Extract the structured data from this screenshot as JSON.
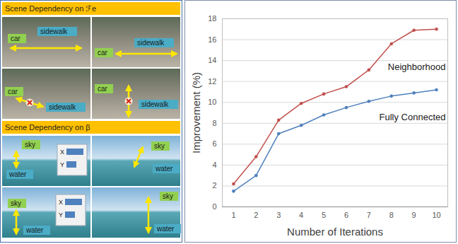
{
  "left_panel": {
    "sections": [
      {
        "title": "Scene Dependency on ℱe",
        "images": [
          {
            "labels": [
              "car",
              "sidewalk"
            ]
          },
          {
            "labels": [
              "car",
              "sidewalk"
            ]
          },
          {
            "labels": [
              "car",
              "sidewalk"
            ]
          },
          {
            "labels": [
              "car",
              "sidewalk"
            ]
          }
        ]
      },
      {
        "title": "Scene Dependency on β",
        "images": [
          {
            "labels": [
              "sky",
              "water"
            ],
            "inset_labels": [
              "X",
              "Y"
            ]
          },
          {
            "labels": [
              "sky",
              "water"
            ]
          },
          {
            "labels": [
              "sky",
              "water"
            ],
            "inset_labels": [
              "X",
              "Y"
            ]
          },
          {
            "labels": [
              "sky",
              "water"
            ]
          }
        ]
      }
    ]
  },
  "chart_data": {
    "type": "line",
    "x_label": "Number of Iterations",
    "y_label": "Improvement (%)",
    "x": [
      1,
      2,
      3,
      4,
      5,
      6,
      7,
      8,
      9,
      10
    ],
    "series": [
      {
        "name": "Neighborhood",
        "color": "#c0504d",
        "marker": "circle",
        "values": [
          2.2,
          4.8,
          8.3,
          9.9,
          10.8,
          11.5,
          13.1,
          15.6,
          16.9,
          17.0
        ]
      },
      {
        "name": "Fully Connected",
        "color": "#4f81bd",
        "marker": "circle",
        "values": [
          1.5,
          3.0,
          7.0,
          7.8,
          8.8,
          9.5,
          10.1,
          10.6,
          10.9,
          11.2
        ]
      }
    ],
    "xlim": [
      0.5,
      10.5
    ],
    "xticks": [
      1,
      2,
      3,
      4,
      5,
      6,
      7,
      8,
      9,
      10
    ],
    "ylim": [
      0,
      18
    ],
    "yticks": [
      0,
      2,
      4,
      6,
      8,
      10,
      12,
      14,
      16,
      18
    ],
    "grid": true
  }
}
